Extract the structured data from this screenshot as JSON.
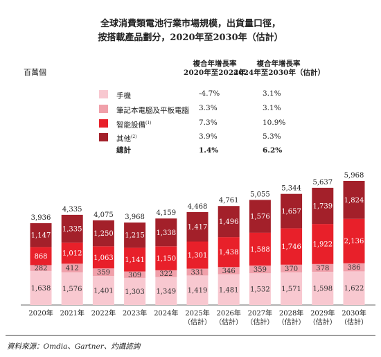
{
  "title_line1": "全球消費類電池行業市場規模，出貨量口徑，",
  "title_line2": "按搭載產品劃分，2020年至2030年（估計）",
  "unit_label": "百萬個",
  "cagr_headers": {
    "col1": [
      "複合年增長率",
      "2020年至2024年"
    ],
    "col2": [
      "複合年增長率",
      "2024年至2030年（估計）"
    ]
  },
  "legend": [
    {
      "label": "手機",
      "sup": "",
      "cagr1": "-4.7%",
      "cagr2": "3.1%",
      "color": "#f8c8d0"
    },
    {
      "label": "筆記本電腦及平板電腦",
      "sup": "",
      "cagr1": "3.3%",
      "cagr2": "3.1%",
      "color": "#f0a0aa"
    },
    {
      "label": "智能設備",
      "sup": "(1)",
      "cagr1": "7.3%",
      "cagr2": "10.9%",
      "color": "#e8202a"
    },
    {
      "label": "其他",
      "sup": "(2)",
      "cagr1": "3.9%",
      "cagr2": "5.3%",
      "color": "#a3202a"
    }
  ],
  "total_row": {
    "label": "總計",
    "cagr1": "1.4%",
    "cagr2": "6.2%"
  },
  "chart_data": {
    "type": "bar",
    "stacked": true,
    "categories": [
      [
        "2020年"
      ],
      [
        "2021年"
      ],
      [
        "2022年"
      ],
      [
        "2023年"
      ],
      [
        "2024年"
      ],
      [
        "2025年",
        "（估計）"
      ],
      [
        "2026年",
        "（估計）"
      ],
      [
        "2027年",
        "（估計）"
      ],
      [
        "2028年",
        "（估計）"
      ],
      [
        "2029年",
        "（估計）"
      ],
      [
        "2030年",
        "（估計）"
      ]
    ],
    "series": [
      {
        "name": "手機",
        "values": [
          1638,
          1576,
          1401,
          1303,
          1349,
          1419,
          1481,
          1532,
          1571,
          1598,
          1622
        ]
      },
      {
        "name": "筆記本電腦及平板電腦",
        "values": [
          282,
          412,
          359,
          309,
          322,
          331,
          346,
          359,
          370,
          378,
          386
        ]
      },
      {
        "name": "智能設備",
        "values": [
          868,
          1012,
          1063,
          1141,
          1150,
          1301,
          1438,
          1588,
          1746,
          1922,
          2136
        ]
      },
      {
        "name": "其他",
        "values": [
          1147,
          1335,
          1250,
          1215,
          1338,
          1417,
          1496,
          1576,
          1657,
          1739,
          1824
        ]
      }
    ],
    "totals": [
      "3,936",
      "4,335",
      "4,075",
      "3,968",
      "4,159",
      "4,468",
      "4,761",
      "5,055",
      "5,344",
      "5,637",
      "5,968"
    ],
    "colors": [
      "#f8c8d0",
      "#f0a0aa",
      "#e8202a",
      "#a3202a"
    ],
    "ylim": [
      0,
      6000
    ],
    "grid": false
  },
  "source": "資料來源：Omdia、Gartner、灼識諮詢"
}
